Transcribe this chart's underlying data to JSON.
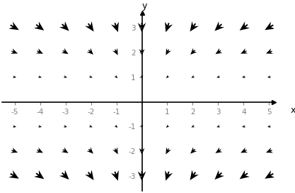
{
  "xlim": [
    -5.5,
    5.2
  ],
  "ylim": [
    -3.6,
    3.6
  ],
  "xlabel": "x",
  "ylabel": "y",
  "x_ticks": [
    -5,
    -4,
    -3,
    -2,
    -1,
    1,
    2,
    3,
    4,
    5
  ],
  "y_ticks": [
    -3,
    -2,
    -1,
    1,
    2,
    3
  ],
  "grid_x_start": -5,
  "grid_x_end": 5,
  "grid_y_start": -3,
  "grid_y_end": 3,
  "grid_step": 1,
  "arrow_color": "black",
  "background_color": "white",
  "figsize": [
    4.17,
    2.72
  ],
  "dpi": 100
}
